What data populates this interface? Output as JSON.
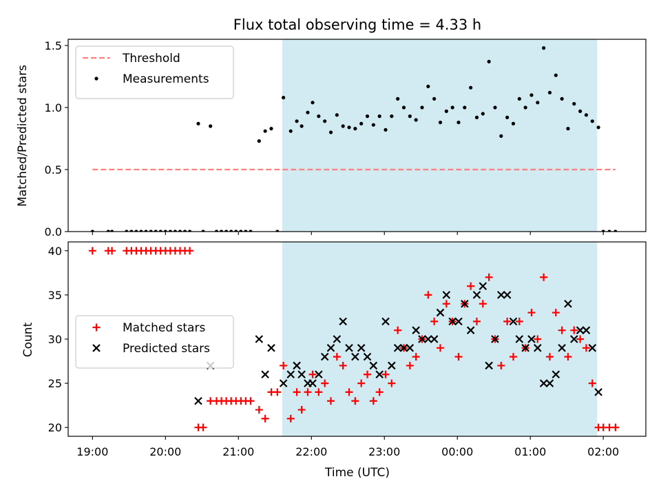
{
  "chart_data": {
    "type": "scatter",
    "title": "Flux total observing time = 4.33 h",
    "x_label": "Time (UTC)",
    "x_ticks": [
      "19:00",
      "20:00",
      "21:00",
      "22:00",
      "23:00",
      "00:00",
      "01:00",
      "02:00"
    ],
    "shaded_span": [
      "21:36",
      "01:55"
    ],
    "colors": {
      "shade": "#add8e6",
      "threshold": "#ff7f7f",
      "matched": "#ff0000",
      "predicted": "#000000",
      "measurements": "#000000"
    },
    "panels": [
      {
        "name": "ratio",
        "ylabel": "Matched/Predicted stars",
        "ylim": [
          0,
          1.55
        ],
        "yticks": [
          "0.0",
          "0.5",
          "1.0",
          "1.5"
        ],
        "legend_position": "upper left",
        "threshold": {
          "label": "Threshold",
          "value": 0.5,
          "x_range": [
            "19:00",
            "02:10"
          ]
        },
        "series": [
          {
            "name": "Measurements",
            "marker": "dot",
            "points": [
              [
                "19:00",
                0
              ],
              [
                "19:13",
                0
              ],
              [
                "19:16",
                0
              ],
              [
                "19:28",
                0
              ],
              [
                "19:32",
                0
              ],
              [
                "19:36",
                0
              ],
              [
                "19:40",
                0
              ],
              [
                "19:44",
                0
              ],
              [
                "19:48",
                0
              ],
              [
                "19:52",
                0
              ],
              [
                "19:56",
                0
              ],
              [
                "20:00",
                0
              ],
              [
                "20:04",
                0
              ],
              [
                "20:08",
                0
              ],
              [
                "20:12",
                0
              ],
              [
                "20:16",
                0
              ],
              [
                "20:20",
                0
              ],
              [
                "20:27",
                0.87
              ],
              [
                "20:31",
                0
              ],
              [
                "20:37",
                0.85
              ],
              [
                "20:42",
                0
              ],
              [
                "20:46",
                0
              ],
              [
                "20:50",
                0
              ],
              [
                "20:54",
                0
              ],
              [
                "20:58",
                0
              ],
              [
                "21:02",
                0
              ],
              [
                "21:06",
                0
              ],
              [
                "21:10",
                0
              ],
              [
                "21:17",
                0.73
              ],
              [
                "21:22",
                0.81
              ],
              [
                "21:27",
                0.83
              ],
              [
                "21:32",
                0
              ],
              [
                "21:37",
                1.08
              ],
              [
                "21:43",
                0.81
              ],
              [
                "21:48",
                0.89
              ],
              [
                "21:52",
                0.85
              ],
              [
                "21:57",
                0.96
              ],
              [
                "22:01",
                1.04
              ],
              [
                "22:06",
                0.93
              ],
              [
                "22:11",
                0.89
              ],
              [
                "22:16",
                0.8
              ],
              [
                "22:21",
                0.94
              ],
              [
                "22:26",
                0.85
              ],
              [
                "22:31",
                0.84
              ],
              [
                "22:36",
                0.83
              ],
              [
                "22:41",
                0.87
              ],
              [
                "22:46",
                0.93
              ],
              [
                "22:51",
                0.86
              ],
              [
                "22:56",
                0.93
              ],
              [
                "23:01",
                0.82
              ],
              [
                "23:06",
                0.93
              ],
              [
                "23:11",
                1.07
              ],
              [
                "23:16",
                1.0
              ],
              [
                "23:21",
                0.93
              ],
              [
                "23:26",
                0.9
              ],
              [
                "23:31",
                1.0
              ],
              [
                "23:36",
                1.17
              ],
              [
                "23:41",
                1.07
              ],
              [
                "23:46",
                0.88
              ],
              [
                "23:51",
                0.97
              ],
              [
                "23:56",
                1.0
              ],
              [
                "00:01",
                0.88
              ],
              [
                "00:06",
                1.0
              ],
              [
                "00:11",
                1.16
              ],
              [
                "00:16",
                0.92
              ],
              [
                "00:21",
                0.95
              ],
              [
                "00:26",
                1.37
              ],
              [
                "00:31",
                1.0
              ],
              [
                "00:36",
                0.77
              ],
              [
                "00:41",
                0.92
              ],
              [
                "00:46",
                0.87
              ],
              [
                "00:51",
                1.07
              ],
              [
                "00:56",
                1.0
              ],
              [
                "01:01",
                1.1
              ],
              [
                "01:06",
                1.04
              ],
              [
                "01:11",
                1.48
              ],
              [
                "01:16",
                1.12
              ],
              [
                "01:21",
                1.26
              ],
              [
                "01:26",
                1.07
              ],
              [
                "01:31",
                0.83
              ],
              [
                "01:36",
                1.03
              ],
              [
                "01:41",
                0.97
              ],
              [
                "01:46",
                0.94
              ],
              [
                "01:51",
                0.89
              ],
              [
                "01:56",
                0.84
              ],
              [
                "02:00",
                0
              ],
              [
                "02:05",
                0
              ],
              [
                "02:10",
                0
              ]
            ]
          }
        ]
      },
      {
        "name": "counts",
        "ylabel": "Count",
        "ylim": [
          19,
          41
        ],
        "yticks": [
          "20",
          "25",
          "30",
          "35",
          "40"
        ],
        "legend_position": "center left",
        "series": [
          {
            "name": "Matched stars",
            "marker": "plus",
            "points": [
              [
                "19:00",
                40
              ],
              [
                "19:13",
                40
              ],
              [
                "19:16",
                40
              ],
              [
                "19:28",
                40
              ],
              [
                "19:32",
                40
              ],
              [
                "19:36",
                40
              ],
              [
                "19:40",
                40
              ],
              [
                "19:44",
                40
              ],
              [
                "19:48",
                40
              ],
              [
                "19:52",
                40
              ],
              [
                "19:56",
                40
              ],
              [
                "20:00",
                40
              ],
              [
                "20:04",
                40
              ],
              [
                "20:08",
                40
              ],
              [
                "20:12",
                40
              ],
              [
                "20:16",
                40
              ],
              [
                "20:20",
                40
              ],
              [
                "20:27",
                20
              ],
              [
                "20:31",
                20
              ],
              [
                "20:37",
                23
              ],
              [
                "20:42",
                23
              ],
              [
                "20:46",
                23
              ],
              [
                "20:50",
                23
              ],
              [
                "20:54",
                23
              ],
              [
                "20:58",
                23
              ],
              [
                "21:02",
                23
              ],
              [
                "21:06",
                23
              ],
              [
                "21:10",
                23
              ],
              [
                "21:17",
                22
              ],
              [
                "21:22",
                21
              ],
              [
                "21:27",
                24
              ],
              [
                "21:32",
                24
              ],
              [
                "21:37",
                27
              ],
              [
                "21:43",
                21
              ],
              [
                "21:48",
                24
              ],
              [
                "21:52",
                22
              ],
              [
                "21:57",
                24
              ],
              [
                "22:01",
                26
              ],
              [
                "22:06",
                24
              ],
              [
                "22:11",
                25
              ],
              [
                "22:16",
                23
              ],
              [
                "22:21",
                28
              ],
              [
                "22:26",
                27
              ],
              [
                "22:31",
                24
              ],
              [
                "22:36",
                23
              ],
              [
                "22:41",
                25
              ],
              [
                "22:46",
                26
              ],
              [
                "22:51",
                23
              ],
              [
                "22:56",
                24
              ],
              [
                "23:01",
                26
              ],
              [
                "23:06",
                25
              ],
              [
                "23:11",
                31
              ],
              [
                "23:16",
                29
              ],
              [
                "23:21",
                27
              ],
              [
                "23:26",
                28
              ],
              [
                "23:31",
                30
              ],
              [
                "23:36",
                35
              ],
              [
                "23:41",
                32
              ],
              [
                "23:46",
                29
              ],
              [
                "23:51",
                34
              ],
              [
                "23:56",
                32
              ],
              [
                "00:01",
                28
              ],
              [
                "00:06",
                34
              ],
              [
                "00:11",
                36
              ],
              [
                "00:16",
                32
              ],
              [
                "00:21",
                34
              ],
              [
                "00:26",
                37
              ],
              [
                "00:31",
                30
              ],
              [
                "00:36",
                27
              ],
              [
                "00:41",
                32
              ],
              [
                "00:46",
                28
              ],
              [
                "00:51",
                32
              ],
              [
                "00:56",
                29
              ],
              [
                "01:01",
                33
              ],
              [
                "01:06",
                30
              ],
              [
                "01:11",
                37
              ],
              [
                "01:16",
                28
              ],
              [
                "01:21",
                33
              ],
              [
                "01:26",
                31
              ],
              [
                "01:31",
                28
              ],
              [
                "01:36",
                31
              ],
              [
                "01:41",
                30
              ],
              [
                "01:46",
                29
              ],
              [
                "01:51",
                25
              ],
              [
                "01:56",
                20
              ],
              [
                "02:00",
                20
              ],
              [
                "02:05",
                20
              ],
              [
                "02:10",
                20
              ]
            ]
          },
          {
            "name": "Predicted stars",
            "marker": "x",
            "points": [
              [
                "20:27",
                23
              ],
              [
                "20:37",
                27
              ],
              [
                "21:17",
                30
              ],
              [
                "21:22",
                26
              ],
              [
                "21:27",
                29
              ],
              [
                "21:37",
                25
              ],
              [
                "21:43",
                26
              ],
              [
                "21:48",
                27
              ],
              [
                "21:52",
                26
              ],
              [
                "21:57",
                25
              ],
              [
                "22:01",
                25
              ],
              [
                "22:06",
                26
              ],
              [
                "22:11",
                28
              ],
              [
                "22:16",
                29
              ],
              [
                "22:21",
                30
              ],
              [
                "22:26",
                32
              ],
              [
                "22:31",
                29
              ],
              [
                "22:36",
                28
              ],
              [
                "22:41",
                29
              ],
              [
                "22:46",
                28
              ],
              [
                "22:51",
                27
              ],
              [
                "22:56",
                26
              ],
              [
                "23:01",
                32
              ],
              [
                "23:06",
                27
              ],
              [
                "23:11",
                29
              ],
              [
                "23:16",
                29
              ],
              [
                "23:21",
                29
              ],
              [
                "23:26",
                31
              ],
              [
                "23:31",
                30
              ],
              [
                "23:36",
                30
              ],
              [
                "23:41",
                30
              ],
              [
                "23:46",
                33
              ],
              [
                "23:51",
                35
              ],
              [
                "23:56",
                32
              ],
              [
                "00:01",
                32
              ],
              [
                "00:06",
                34
              ],
              [
                "00:11",
                31
              ],
              [
                "00:16",
                35
              ],
              [
                "00:21",
                36
              ],
              [
                "00:26",
                27
              ],
              [
                "00:31",
                30
              ],
              [
                "00:36",
                35
              ],
              [
                "00:41",
                35
              ],
              [
                "00:46",
                32
              ],
              [
                "00:51",
                30
              ],
              [
                "00:56",
                29
              ],
              [
                "01:01",
                30
              ],
              [
                "01:06",
                29
              ],
              [
                "01:11",
                25
              ],
              [
                "01:16",
                25
              ],
              [
                "01:21",
                26
              ],
              [
                "01:26",
                29
              ],
              [
                "01:31",
                34
              ],
              [
                "01:36",
                30
              ],
              [
                "01:41",
                31
              ],
              [
                "01:46",
                31
              ],
              [
                "01:51",
                29
              ],
              [
                "01:56",
                24
              ]
            ]
          }
        ]
      }
    ]
  }
}
